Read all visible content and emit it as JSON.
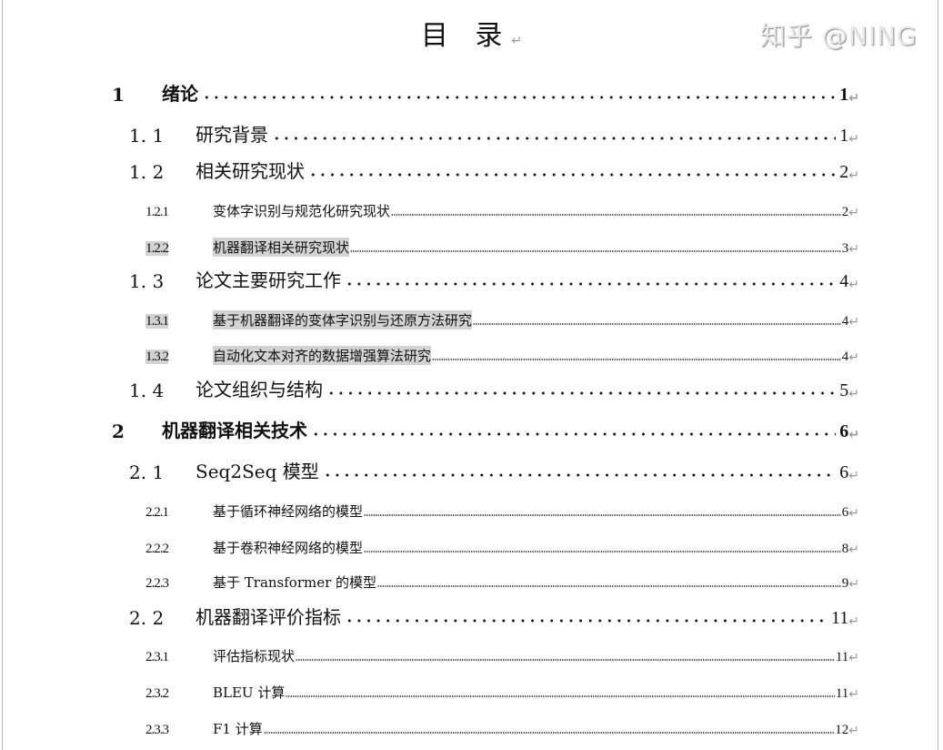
{
  "title": "目 录",
  "return_mark": "↵",
  "entries": [
    {
      "level": 1,
      "num": "1",
      "text": "绪论",
      "page": "1",
      "highlight": false
    },
    {
      "level": 2,
      "num": "1. 1",
      "text": "研究背景",
      "page": "1",
      "highlight": false
    },
    {
      "level": 2,
      "num": "1. 2",
      "text": "相关研究现状",
      "page": "2",
      "highlight": false
    },
    {
      "level": 3,
      "num": "1.2.1",
      "text": "变体字识别与规范化研究现状",
      "page": "2",
      "highlight": false
    },
    {
      "level": 3,
      "num": "1.2.2",
      "text": "机器翻译相关研究现状",
      "page": "3",
      "highlight": true
    },
    {
      "level": 2,
      "num": "1. 3",
      "text": "论文主要研究工作",
      "page": "4",
      "highlight": false
    },
    {
      "level": 3,
      "num": "1.3.1",
      "text": "基于机器翻译的变体字识别与还原方法研究",
      "page": "4",
      "highlight": true
    },
    {
      "level": 3,
      "num": "1.3.2",
      "text": "自动化文本对齐的数据增强算法研究",
      "page": "4",
      "highlight": true
    },
    {
      "level": 2,
      "num": "1. 4",
      "text": "论文组织与结构",
      "page": "5",
      "highlight": false
    },
    {
      "level": 1,
      "num": "2",
      "text": "机器翻译相关技术",
      "page": "6",
      "highlight": false
    },
    {
      "level": 2,
      "num": "2. 1",
      "text": "Seq2Seq 模型",
      "page": "6",
      "highlight": false
    },
    {
      "level": 3,
      "num": "2.2.1",
      "text": "基于循环神经网络的模型",
      "page": "6",
      "highlight": false
    },
    {
      "level": 3,
      "num": "2.2.2",
      "text": "基于卷积神经网络的模型",
      "page": "8",
      "highlight": false
    },
    {
      "level": 3,
      "num": "2.2.3",
      "text": "基于 Transformer 的模型",
      "page": "9",
      "highlight": false
    },
    {
      "level": 2,
      "num": "2. 2",
      "text": "机器翻译评价指标",
      "page": "11",
      "highlight": false
    },
    {
      "level": 3,
      "num": "2.3.1",
      "text": "评估指标现状",
      "page": "11",
      "highlight": false
    },
    {
      "level": 3,
      "num": "2.3.2",
      "text": "BLEU 计算",
      "page": "11",
      "highlight": false
    },
    {
      "level": 3,
      "num": "2.3.3",
      "text": "F1 计算",
      "page": "12",
      "highlight": false
    }
  ],
  "watermark": "知乎 @NING"
}
